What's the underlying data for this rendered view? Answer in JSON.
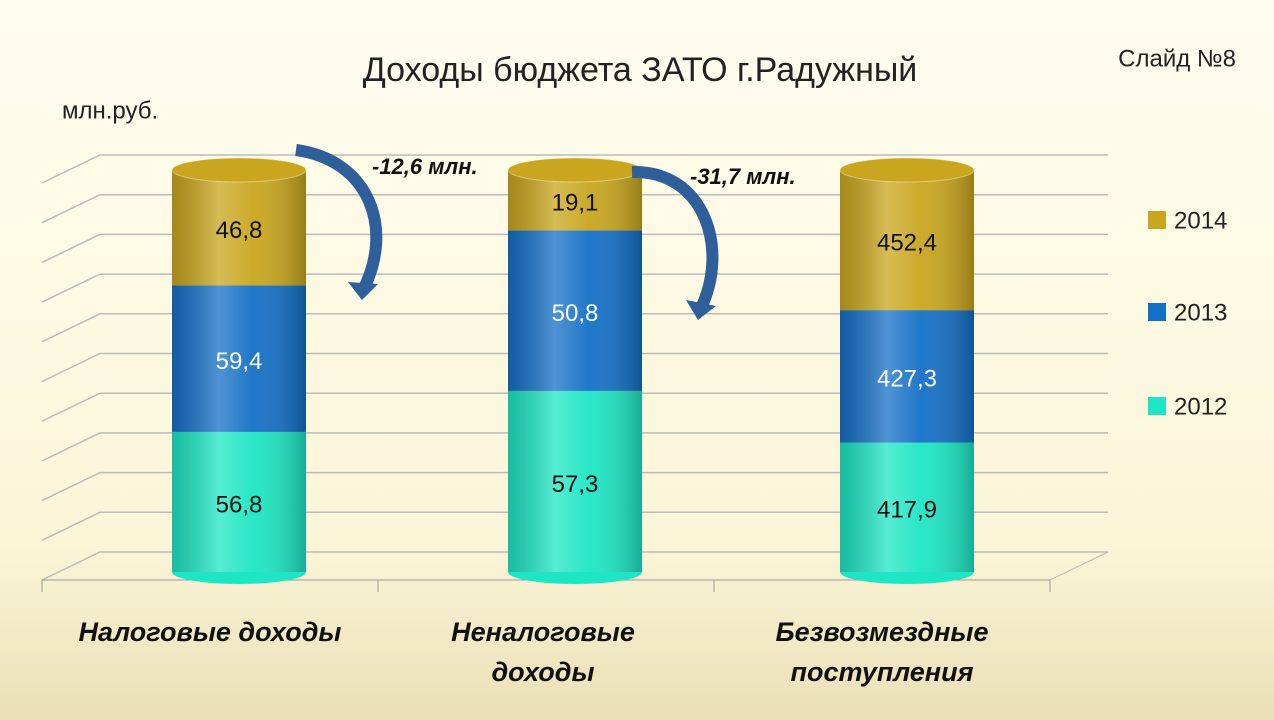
{
  "chart_data": {
    "type": "bar",
    "stacking": "percent",
    "title": "Доходы бюджета ЗАТО г.Радужный",
    "subtitle": "Слайд №8",
    "unit_label": "млн.руб.",
    "categories": [
      "Налоговые доходы",
      "Неналоговые доходы",
      "Безвозмездные поступления"
    ],
    "series": [
      {
        "name": "2012",
        "color": "#1ee6c4",
        "values": [
          56.8,
          57.3,
          417.9
        ],
        "value_labels": [
          "56,8",
          "57,3",
          "417,9"
        ]
      },
      {
        "name": "2013",
        "color": "#1470c6",
        "values": [
          59.4,
          50.8,
          427.3
        ],
        "value_labels": [
          "59,4",
          "50,8",
          "427,3"
        ]
      },
      {
        "name": "2014",
        "color": "#c9a61e",
        "values": [
          46.8,
          19.1,
          452.4
        ],
        "value_labels": [
          "46,8",
          "19,1",
          "452,4"
        ]
      }
    ],
    "annotations": [
      "-12,6 млн.",
      "-31,7 млн."
    ],
    "grid": true
  }
}
